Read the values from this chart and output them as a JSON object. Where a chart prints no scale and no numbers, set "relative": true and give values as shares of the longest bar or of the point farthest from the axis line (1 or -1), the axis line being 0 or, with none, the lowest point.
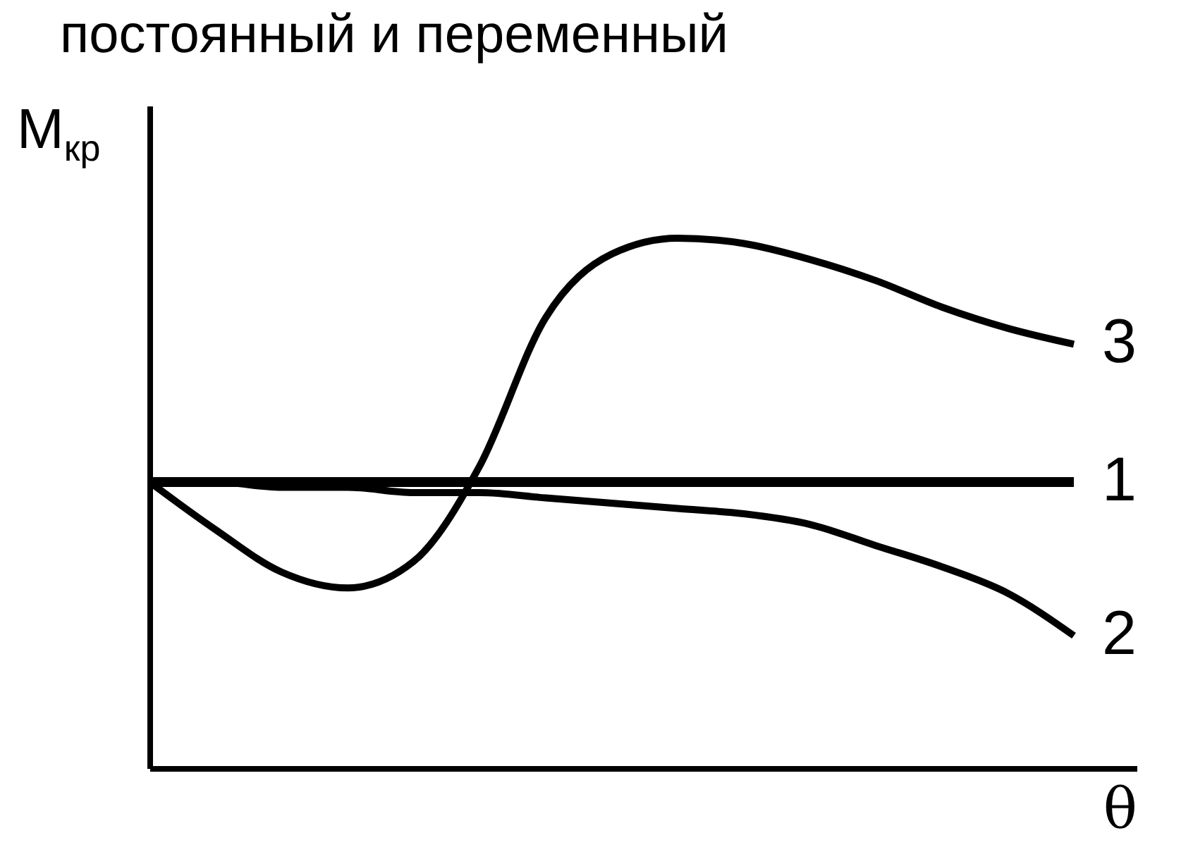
{
  "chart_data": {
    "type": "line",
    "title": "постоянный и переменный",
    "xlabel": "θ",
    "ylabel": "M$_{кр}$",
    "relative": true,
    "line_style": "solid",
    "categories": [
      null,
      null,
      null,
      null,
      null,
      null,
      null,
      null,
      null,
      null,
      null,
      null,
      null,
      null,
      null
    ],
    "series": [
      {
        "name": "1",
        "color": "#000000",
        "values": [
          0.54,
          0.54,
          0.54,
          0.54,
          0.54,
          0.54,
          0.54,
          0.54,
          0.54,
          0.54,
          0.54,
          0.54,
          0.54,
          0.54,
          0.54
        ]
      },
      {
        "name": "2",
        "color": "#000000",
        "values": [
          0.54,
          0.54,
          0.53,
          0.53,
          0.52,
          0.52,
          0.51,
          0.5,
          0.49,
          0.48,
          0.46,
          0.42,
          0.38,
          0.33,
          0.25
        ]
      },
      {
        "name": "3",
        "color": "#000000",
        "values": [
          0.54,
          0.45,
          0.37,
          0.34,
          0.39,
          0.57,
          0.85,
          0.97,
          1.0,
          0.99,
          0.96,
          0.92,
          0.87,
          0.83,
          0.8
        ]
      }
    ]
  }
}
